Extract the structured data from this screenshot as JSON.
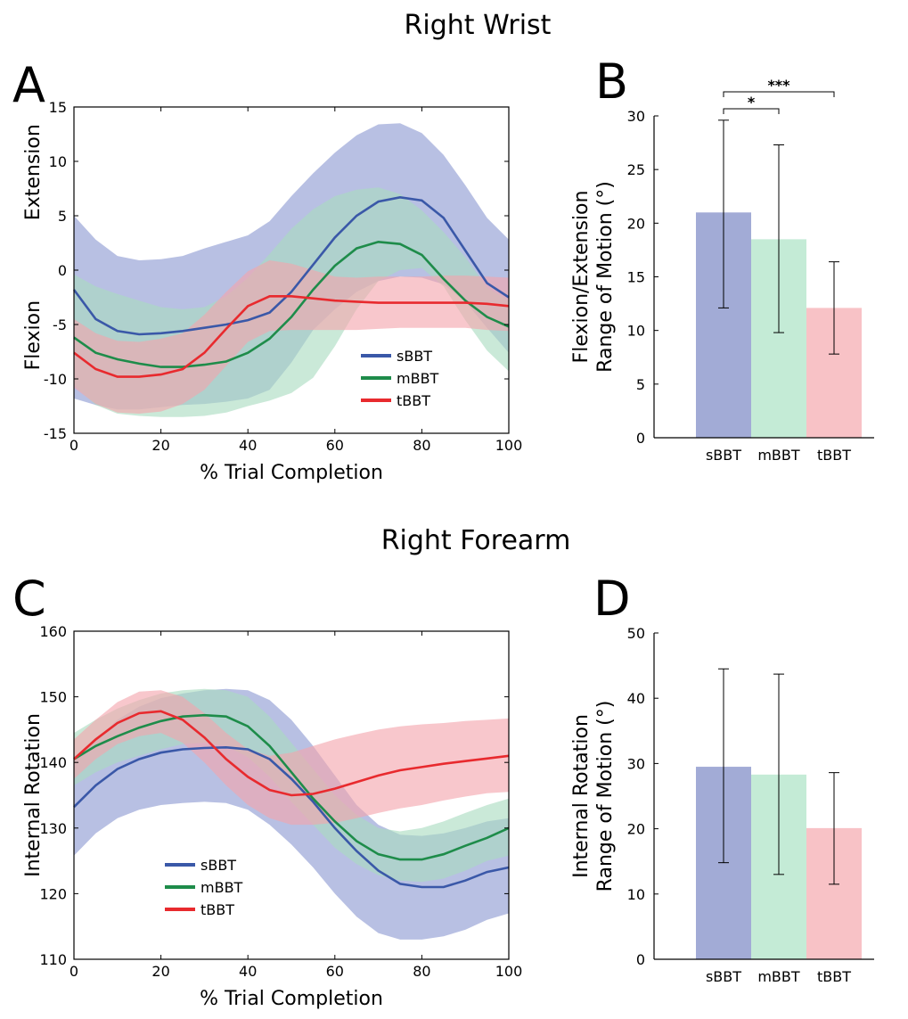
{
  "sections": {
    "top": "Right Wrist",
    "bottom": "Right Forearm"
  },
  "chart_data": [
    {
      "panel": "A",
      "type": "line",
      "xlabel": "% Trial Completion",
      "ylabels": [
        "Extension",
        "Flexion"
      ],
      "xlim": [
        0,
        100
      ],
      "ylim": [
        -15,
        15
      ],
      "xticks": [
        0,
        20,
        40,
        60,
        80,
        100
      ],
      "yticks": [
        -15,
        -10,
        -5,
        0,
        5,
        10,
        15
      ],
      "legend_position": "lower-center",
      "x": [
        0,
        5,
        10,
        15,
        20,
        25,
        30,
        35,
        40,
        45,
        50,
        55,
        60,
        65,
        70,
        75,
        80,
        85,
        90,
        95,
        100
      ],
      "series": [
        {
          "name": "sBBT",
          "color": "#3a58a8",
          "band": "#8c9ad2",
          "mean": [
            -1.8,
            -4.5,
            -5.6,
            -5.9,
            -5.8,
            -5.6,
            -5.3,
            -5.0,
            -4.6,
            -3.9,
            -2.0,
            0.5,
            3.0,
            5.0,
            6.3,
            6.7,
            6.4,
            4.8,
            1.8,
            -1.2,
            -2.5
          ],
          "upper": [
            5.0,
            2.8,
            1.3,
            0.9,
            1.0,
            1.3,
            2.0,
            2.6,
            3.2,
            4.5,
            6.8,
            8.9,
            10.8,
            12.4,
            13.4,
            13.5,
            12.6,
            10.6,
            7.8,
            4.8,
            2.8
          ],
          "lower": [
            -11.8,
            -12.4,
            -12.8,
            -12.8,
            -12.6,
            -12.4,
            -12.3,
            -12.1,
            -11.8,
            -11.0,
            -8.5,
            -5.5,
            -3.6,
            -2.0,
            -1.0,
            -0.6,
            -0.7,
            -1.3,
            -2.9,
            -5.3,
            -7.6
          ]
        },
        {
          "name": "mBBT",
          "color": "#1e8c4a",
          "band": "#a9dcc0",
          "mean": [
            -6.2,
            -7.6,
            -8.2,
            -8.6,
            -8.9,
            -8.9,
            -8.7,
            -8.4,
            -7.6,
            -6.3,
            -4.3,
            -1.8,
            0.4,
            2.0,
            2.6,
            2.4,
            1.4,
            -0.8,
            -2.8,
            -4.3,
            -5.2
          ],
          "upper": [
            -0.4,
            -1.5,
            -2.2,
            -2.8,
            -3.4,
            -3.6,
            -3.4,
            -2.4,
            -0.7,
            1.5,
            3.8,
            5.6,
            6.8,
            7.4,
            7.6,
            7.0,
            5.5,
            3.5,
            1.2,
            -1.6,
            -2.8
          ],
          "lower": [
            -10.6,
            -12.4,
            -13.2,
            -13.4,
            -13.5,
            -13.5,
            -13.4,
            -13.1,
            -12.5,
            -12.0,
            -11.3,
            -9.9,
            -7.0,
            -3.6,
            -1.0,
            0.0,
            0.2,
            -1.5,
            -4.6,
            -7.4,
            -9.3
          ]
        },
        {
          "name": "tBBT",
          "color": "#e82a2e",
          "band": "#f3a5ad",
          "mean": [
            -7.6,
            -9.1,
            -9.8,
            -9.8,
            -9.6,
            -9.1,
            -7.6,
            -5.4,
            -3.3,
            -2.4,
            -2.4,
            -2.6,
            -2.8,
            -2.9,
            -3.0,
            -3.0,
            -3.0,
            -3.0,
            -3.0,
            -3.1,
            -3.3
          ],
          "upper": [
            -4.5,
            -5.8,
            -6.5,
            -6.6,
            -6.3,
            -5.8,
            -4.1,
            -2.0,
            -0.1,
            0.9,
            0.6,
            0.0,
            -0.6,
            -0.7,
            -0.6,
            -0.6,
            -0.6,
            -0.5,
            -0.5,
            -0.6,
            -0.7
          ],
          "lower": [
            -10.8,
            -12.3,
            -13.1,
            -13.2,
            -13.0,
            -12.3,
            -11.0,
            -8.8,
            -6.6,
            -5.6,
            -5.5,
            -5.5,
            -5.5,
            -5.5,
            -5.4,
            -5.3,
            -5.3,
            -5.3,
            -5.3,
            -5.5,
            -5.6
          ]
        }
      ]
    },
    {
      "panel": "B",
      "type": "bar",
      "ylabel": [
        "Flexion/Extension",
        "Range of Motion (°)"
      ],
      "ylim": [
        0,
        30
      ],
      "yticks": [
        0,
        5,
        10,
        15,
        20,
        25,
        30
      ],
      "categories": [
        "sBBT",
        "mBBT",
        "tBBT"
      ],
      "values": [
        21.0,
        18.5,
        12.1
      ],
      "err_upper": [
        29.6,
        27.3,
        16.4
      ],
      "err_lower": [
        12.1,
        9.8,
        7.8
      ],
      "colors": [
        "#a2abd6",
        "#c4ebd6",
        "#f8c2c6"
      ],
      "significance": [
        {
          "from": 0,
          "to": 1,
          "label": "*"
        },
        {
          "from": 0,
          "to": 2,
          "label": "***"
        }
      ]
    },
    {
      "panel": "C",
      "type": "line",
      "xlabel": "% Trial Completion",
      "ylabel": "Internal Rotation",
      "xlim": [
        0,
        100
      ],
      "ylim": [
        110,
        160
      ],
      "xticks": [
        0,
        20,
        40,
        60,
        80,
        100
      ],
      "yticks": [
        110,
        120,
        130,
        140,
        150,
        160
      ],
      "legend_position": "lower-left",
      "x": [
        0,
        5,
        10,
        15,
        20,
        25,
        30,
        35,
        40,
        45,
        50,
        55,
        60,
        65,
        70,
        75,
        80,
        85,
        90,
        95,
        100
      ],
      "series": [
        {
          "name": "sBBT",
          "color": "#3a58a8",
          "band": "#8c9ad2",
          "mean": [
            133.2,
            136.5,
            139.0,
            140.5,
            141.5,
            142.0,
            142.2,
            142.3,
            142.0,
            140.5,
            137.5,
            134.0,
            130.0,
            126.5,
            123.5,
            121.5,
            121.0,
            121.0,
            122.0,
            123.3,
            124.0
          ],
          "upper": [
            140.2,
            143.5,
            146.5,
            148.5,
            149.8,
            150.5,
            151.0,
            151.2,
            151.0,
            149.5,
            146.5,
            142.5,
            138.0,
            133.5,
            130.5,
            129.0,
            128.8,
            129.2,
            130.0,
            131.0,
            131.5
          ],
          "lower": [
            125.8,
            129.2,
            131.5,
            132.8,
            133.5,
            133.8,
            134.0,
            133.8,
            132.8,
            130.5,
            127.5,
            124.0,
            120.0,
            116.5,
            114.0,
            113.0,
            113.0,
            113.5,
            114.5,
            116.0,
            117.0
          ]
        },
        {
          "name": "mBBT",
          "color": "#1e8c4a",
          "band": "#a9dcc0",
          "mean": [
            140.5,
            142.5,
            144.0,
            145.3,
            146.3,
            147.0,
            147.2,
            147.0,
            145.5,
            142.5,
            138.5,
            134.5,
            131.0,
            128.0,
            126.0,
            125.2,
            125.2,
            126.0,
            127.3,
            128.5,
            130.0
          ],
          "upper": [
            144.5,
            146.5,
            148.2,
            149.5,
            150.5,
            151.0,
            151.2,
            151.0,
            150.0,
            147.0,
            143.0,
            139.0,
            135.0,
            132.0,
            130.0,
            129.5,
            130.0,
            131.0,
            132.3,
            133.5,
            134.5
          ],
          "lower": [
            136.5,
            138.5,
            140.0,
            141.0,
            142.0,
            142.8,
            143.0,
            142.5,
            140.8,
            137.8,
            134.0,
            130.5,
            127.0,
            124.5,
            122.8,
            122.0,
            121.8,
            122.3,
            123.5,
            125.0,
            125.8
          ]
        },
        {
          "name": "tBBT",
          "color": "#e82a2e",
          "band": "#f3a5ad",
          "mean": [
            140.5,
            143.5,
            146.0,
            147.5,
            147.8,
            146.5,
            143.8,
            140.5,
            137.8,
            135.8,
            135.0,
            135.2,
            136.0,
            137.0,
            138.0,
            138.8,
            139.3,
            139.8,
            140.2,
            140.6,
            141.0
          ],
          "upper": [
            143.5,
            146.5,
            149.2,
            150.8,
            151.0,
            150.0,
            147.5,
            144.5,
            142.0,
            141.0,
            141.5,
            142.5,
            143.5,
            144.3,
            145.0,
            145.5,
            145.8,
            146.0,
            146.3,
            146.5,
            146.7
          ],
          "lower": [
            137.5,
            140.5,
            142.8,
            144.0,
            144.5,
            143.0,
            140.0,
            136.5,
            133.5,
            131.5,
            130.5,
            130.5,
            130.8,
            131.5,
            132.3,
            133.0,
            133.5,
            134.2,
            134.8,
            135.3,
            135.5
          ]
        }
      ]
    },
    {
      "panel": "D",
      "type": "bar",
      "ylabel": [
        "Internal Rotation",
        "Range of Motion (°)"
      ],
      "ylim": [
        0,
        50
      ],
      "yticks": [
        0,
        10,
        20,
        30,
        40,
        50
      ],
      "categories": [
        "sBBT",
        "mBBT",
        "tBBT"
      ],
      "values": [
        29.5,
        28.3,
        20.1
      ],
      "err_upper": [
        44.5,
        43.7,
        28.6
      ],
      "err_lower": [
        14.8,
        13.0,
        11.5
      ],
      "colors": [
        "#a2abd6",
        "#c4ebd6",
        "#f8c2c6"
      ],
      "significance": []
    }
  ]
}
